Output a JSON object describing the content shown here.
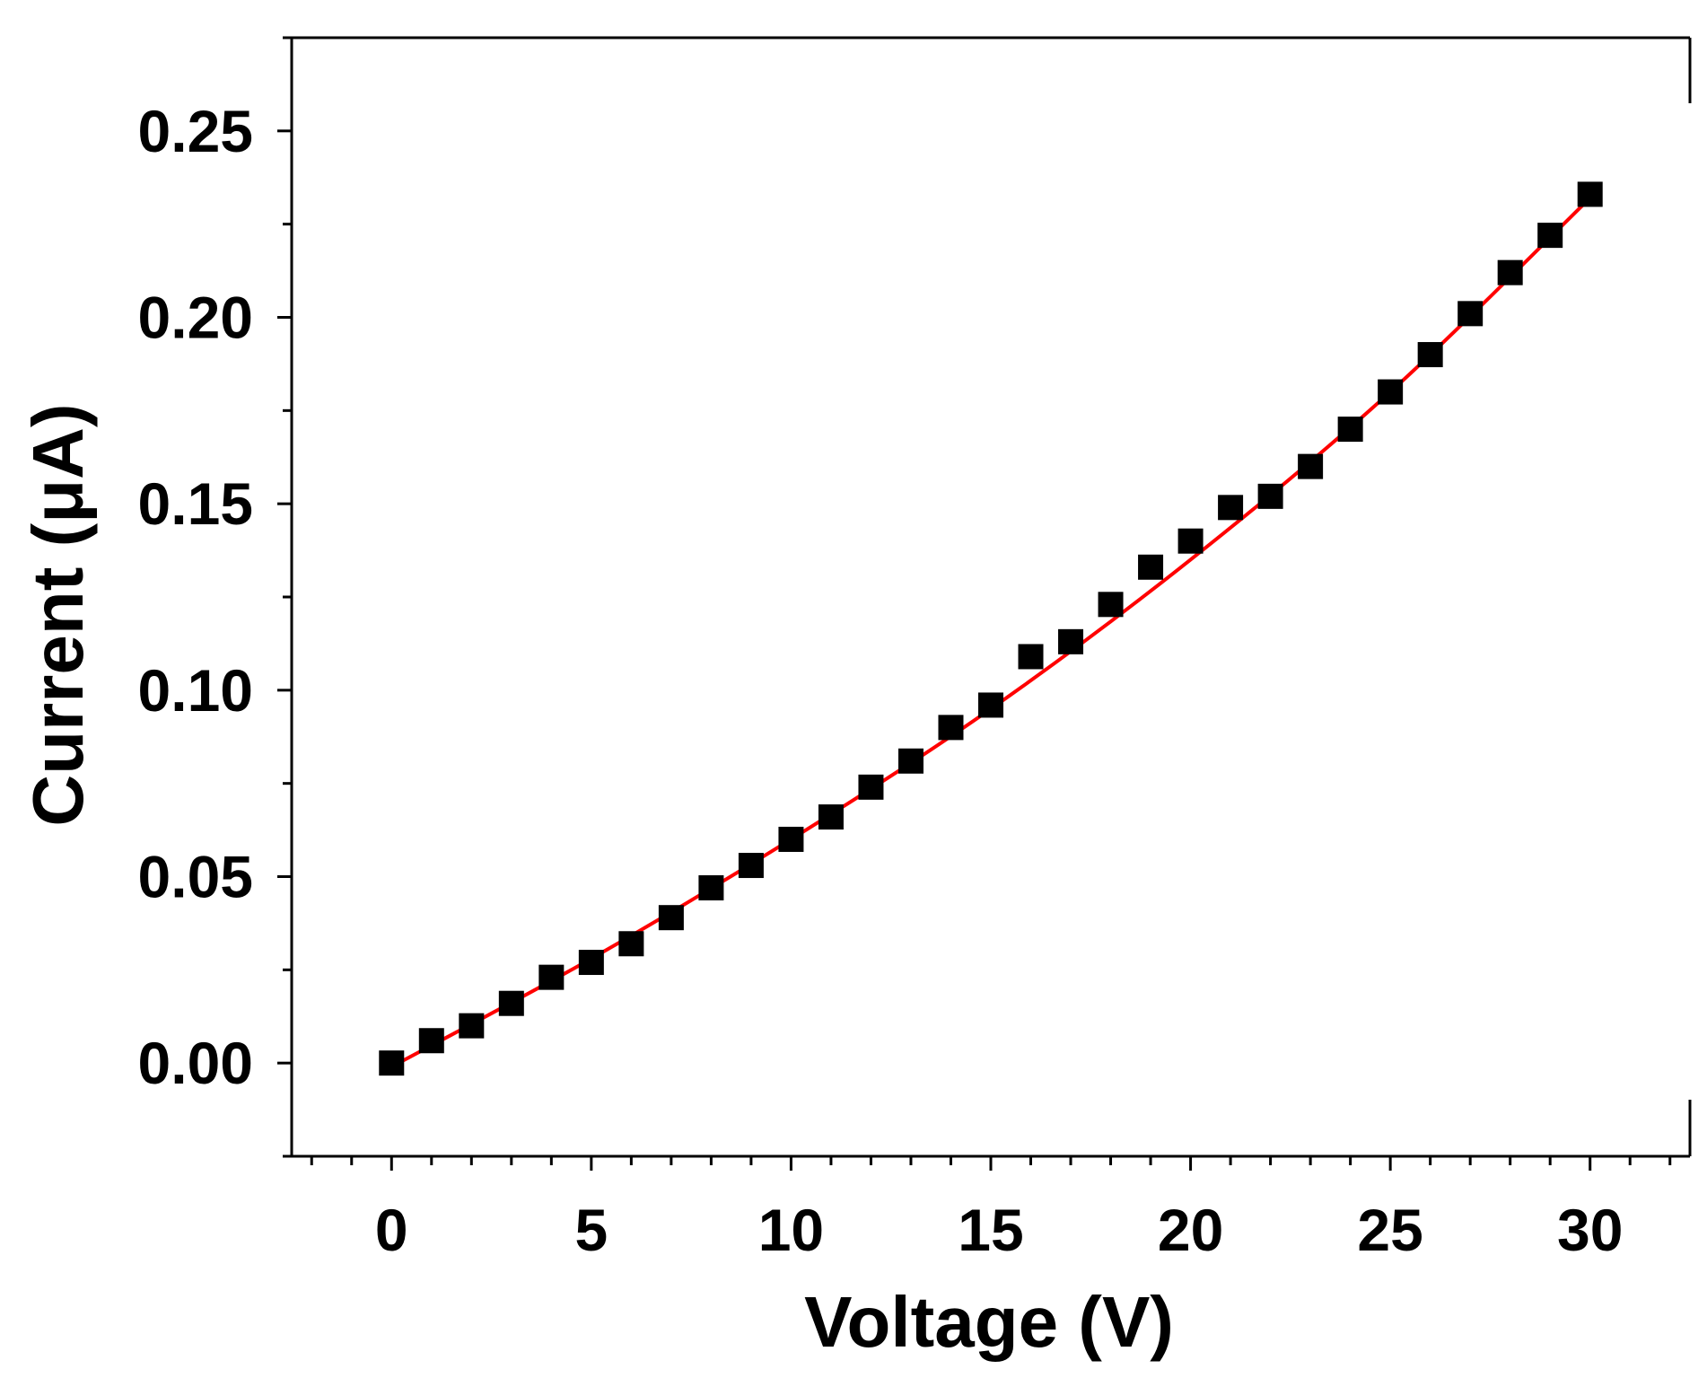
{
  "chart_data": {
    "type": "scatter",
    "xlabel": "Voltage (V)",
    "ylabel": "Current (μA)",
    "xlim": [
      -2.5,
      32.5
    ],
    "ylim": [
      -0.025,
      0.275
    ],
    "x_ticks": [
      0,
      5,
      10,
      15,
      20,
      25,
      30
    ],
    "x_tick_labels": [
      "0",
      "5",
      "10",
      "15",
      "20",
      "25",
      "30"
    ],
    "y_ticks": [
      0.0,
      0.05,
      0.1,
      0.15,
      0.2,
      0.25
    ],
    "y_tick_labels": [
      "0.00",
      "0.05",
      "0.10",
      "0.15",
      "0.20",
      "0.25"
    ],
    "grid": false,
    "legend": "none",
    "series": [
      {
        "marker": "square",
        "color": "#000000",
        "x": [
          0,
          1,
          2,
          3,
          4,
          5,
          6,
          7,
          8,
          9,
          10,
          11,
          12,
          13,
          14,
          15,
          16,
          17,
          18,
          19,
          20,
          21,
          22,
          23,
          24,
          25,
          26,
          27,
          28,
          29,
          30
        ],
        "y": [
          0.0,
          0.006,
          0.01,
          0.016,
          0.023,
          0.027,
          0.032,
          0.039,
          0.047,
          0.053,
          0.06,
          0.066,
          0.074,
          0.081,
          0.09,
          0.096,
          0.109,
          0.113,
          0.123,
          0.133,
          0.14,
          0.149,
          0.152,
          0.16,
          0.17,
          0.18,
          0.19,
          0.201,
          0.212,
          0.222,
          0.233
        ]
      },
      {
        "kind": "fit-line",
        "color": "#ff0000",
        "x": [
          0,
          5,
          10,
          15,
          20,
          25,
          30
        ],
        "y": [
          -0.001,
          0.028,
          0.06,
          0.095,
          0.135,
          0.18,
          0.232
        ]
      }
    ]
  }
}
